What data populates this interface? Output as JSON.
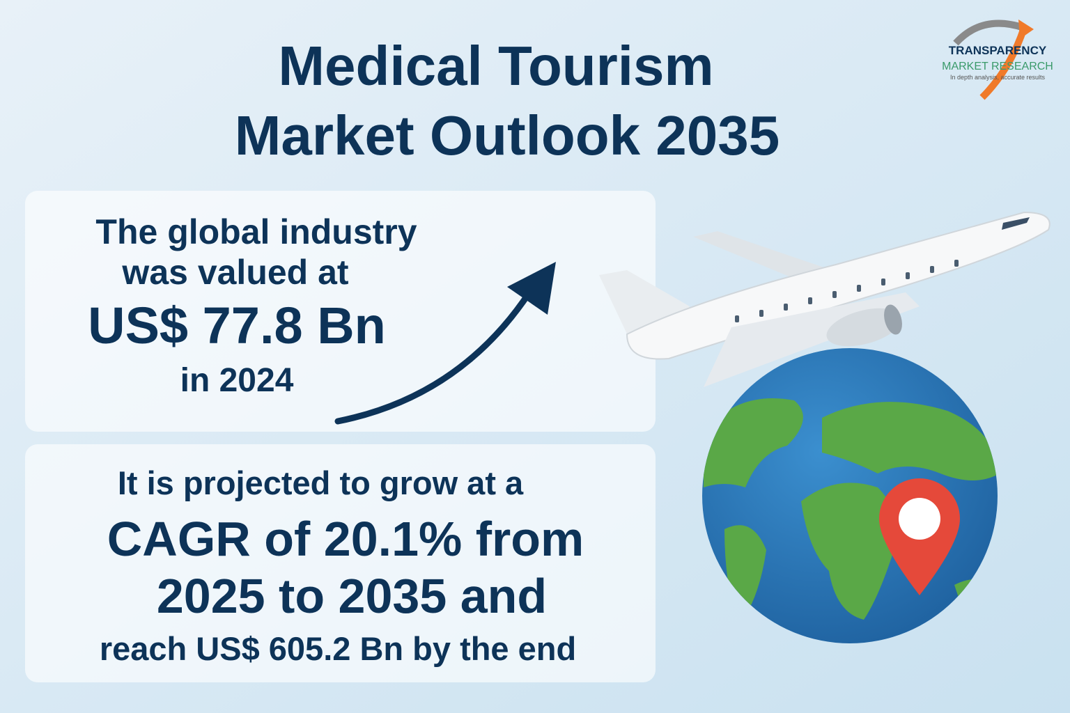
{
  "header": {
    "title_lines": [
      "Medical Tourism",
      "Market Outlook 2035"
    ]
  },
  "logo": {
    "name": "TRANSPARENCY",
    "subname": "MARKET RESEARCH",
    "tagline": "In depth analysis, accurate results"
  },
  "current_value_box": {
    "lines": [
      "The global industry",
      "was valued at",
      "US$ 77.8 Bn",
      "in 2024"
    ]
  },
  "projection_box": {
    "lines": [
      "It is projected to grow at a",
      "CAGR of 20.1% from",
      "2025 to 2035 and",
      "reach US$ 605.2 Bn by the end"
    ]
  }
}
